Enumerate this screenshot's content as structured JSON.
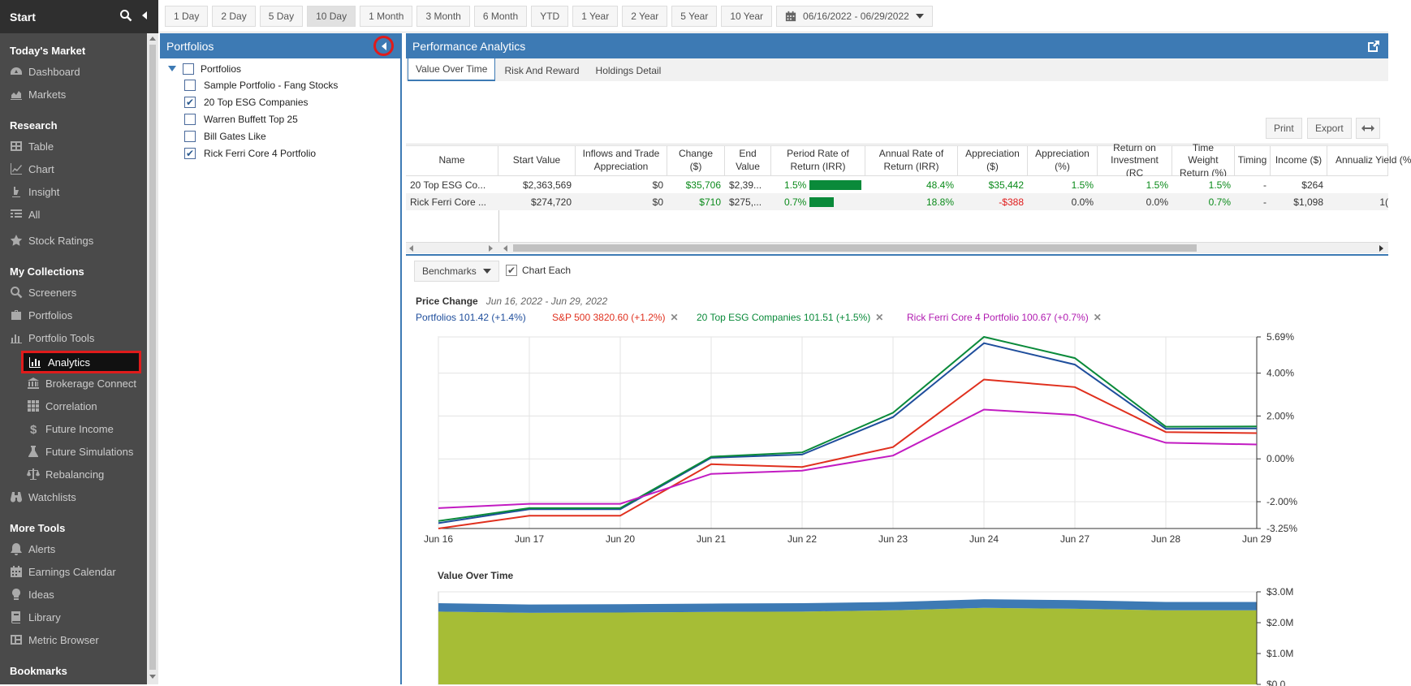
{
  "sidebar": {
    "start_label": "Start",
    "sections": {
      "todays_market": "Today's Market",
      "research": "Research",
      "my_collections": "My Collections",
      "more_tools": "More Tools",
      "bookmarks": "Bookmarks"
    },
    "items": {
      "dashboard": "Dashboard",
      "markets": "Markets",
      "table": "Table",
      "chart": "Chart",
      "insight": "Insight",
      "all": "All",
      "stock_ratings": "Stock Ratings",
      "screeners": "Screeners",
      "portfolios": "Portfolios",
      "portfolio_tools": "Portfolio Tools",
      "analytics": "Analytics",
      "brokerage_connect": "Brokerage Connect",
      "correlation": "Correlation",
      "future_income": "Future Income",
      "future_simulations": "Future Simulations",
      "rebalancing": "Rebalancing",
      "watchlists": "Watchlists",
      "alerts": "Alerts",
      "earnings_calendar": "Earnings Calendar",
      "ideas": "Ideas",
      "library": "Library",
      "metric_browser": "Metric Browser"
    }
  },
  "toolbar": {
    "ranges": [
      "1 Day",
      "2 Day",
      "5 Day",
      "10 Day",
      "1 Month",
      "3 Month",
      "6 Month",
      "YTD",
      "1 Year",
      "2 Year",
      "5 Year",
      "10 Year"
    ],
    "active_range": "10 Day",
    "date_range": "06/16/2022 - 06/29/2022"
  },
  "portfolios_panel": {
    "title": "Portfolios",
    "root": "Portfolios",
    "items": [
      {
        "label": "Sample Portfolio - Fang Stocks",
        "checked": false
      },
      {
        "label": "20 Top ESG Companies",
        "checked": true
      },
      {
        "label": "Warren Buffett Top 25",
        "checked": false
      },
      {
        "label": "Bill Gates Like",
        "checked": false
      },
      {
        "label": "Rick Ferri Core 4 Portfolio",
        "checked": true
      }
    ]
  },
  "analytics": {
    "title": "Performance Analytics",
    "tabs": [
      "Value Over Time",
      "Risk And Reward",
      "Holdings Detail"
    ],
    "active_tab": "Value Over Time",
    "print_label": "Print",
    "export_label": "Export",
    "columns": [
      "Name",
      "Start Value",
      "Inflows and Trade Appreciation",
      "Change ($)",
      "End Value",
      "Period Rate of Return (IRR)",
      "Annual Rate of Return (IRR)",
      "Appreciation ($)",
      "Appreciation (%)",
      "Return on Investment (RC",
      "Time Weight Return (%)",
      "Timing",
      "Income ($)",
      "Annualiz Yield (%"
    ],
    "rows": [
      {
        "name": "20 Top ESG Co...",
        "start": "$2,363,569",
        "inflows": "$0",
        "change": "$35,706",
        "end": "$2,39...",
        "period": "1.5%",
        "period_bar": 1.5,
        "annual": "48.4%",
        "appr": "$35,442",
        "appr_pct": "1.5%",
        "roi": "1.5%",
        "twr": "1.5%",
        "timing": "-",
        "income": "$264",
        "yield": ""
      },
      {
        "name": "Rick Ferri Core ...",
        "start": "$274,720",
        "inflows": "$0",
        "change": "$710",
        "end": "$275,...",
        "period": "0.7%",
        "period_bar": 0.7,
        "annual": "18.8%",
        "appr": "-$388",
        "appr_pct": "0.0%",
        "roi": "0.0%",
        "twr": "0.7%",
        "timing": "-",
        "income": "$1,098",
        "yield": "1("
      }
    ]
  },
  "benchmarks_label": "Benchmarks",
  "chart_each_label": "Chart Each",
  "chart_data": [
    {
      "type": "line",
      "title": "Price Change",
      "subtitle": "Jun 16, 2022 - Jun 29, 2022",
      "categories": [
        "Jun 16",
        "Jun 17",
        "Jun 20",
        "Jun 21",
        "Jun 22",
        "Jun 23",
        "Jun 24",
        "Jun 27",
        "Jun 28",
        "Jun 29"
      ],
      "y_ticks": [
        "5.69%",
        "4.00%",
        "2.00%",
        "0.00%",
        "-2.00%",
        "-3.25%"
      ],
      "ylim": [
        -3.25,
        5.69
      ],
      "grid": true,
      "series": [
        {
          "name": "Portfolios 101.42 (+1.4%)",
          "color": "#1f4e9c",
          "values": [
            -3.0,
            -2.35,
            -2.35,
            0.05,
            0.2,
            1.95,
            5.4,
            4.4,
            1.4,
            1.42
          ]
        },
        {
          "name": "S&P 500 3820.60 (+1.2%)",
          "color": "#e0301e",
          "values": [
            -3.25,
            -2.65,
            -2.65,
            -0.25,
            -0.38,
            0.55,
            3.7,
            3.35,
            1.25,
            1.2
          ]
        },
        {
          "name": "20 Top ESG Companies 101.51 (+1.5%)",
          "color": "#0a8a3a",
          "values": [
            -2.9,
            -2.3,
            -2.3,
            0.1,
            0.3,
            2.15,
            5.69,
            4.7,
            1.5,
            1.51
          ]
        },
        {
          "name": "Rick Ferri Core 4 Portfolio 100.67 (+0.7%)",
          "color": "#c21bc2",
          "values": [
            -2.3,
            -2.1,
            -2.1,
            -0.7,
            -0.55,
            0.15,
            2.3,
            2.05,
            0.75,
            0.67
          ]
        }
      ]
    },
    {
      "type": "area",
      "title": "Value Over Time",
      "y_ticks": [
        "$3.0M",
        "$2.0M",
        "$1.0M",
        "$0.0"
      ],
      "ylim": [
        0,
        3.0
      ],
      "grid": true,
      "series": [
        {
          "name": "20 Top ESG Companies",
          "color": "#a6bd36",
          "values": [
            2.36,
            2.32,
            2.33,
            2.35,
            2.36,
            2.4,
            2.48,
            2.45,
            2.4,
            2.4
          ]
        },
        {
          "name": "Rick Ferri Core 4 Portfolio",
          "color": "#3d7ab4",
          "values": [
            0.27,
            0.27,
            0.27,
            0.27,
            0.27,
            0.27,
            0.28,
            0.28,
            0.27,
            0.27
          ]
        }
      ]
    }
  ]
}
